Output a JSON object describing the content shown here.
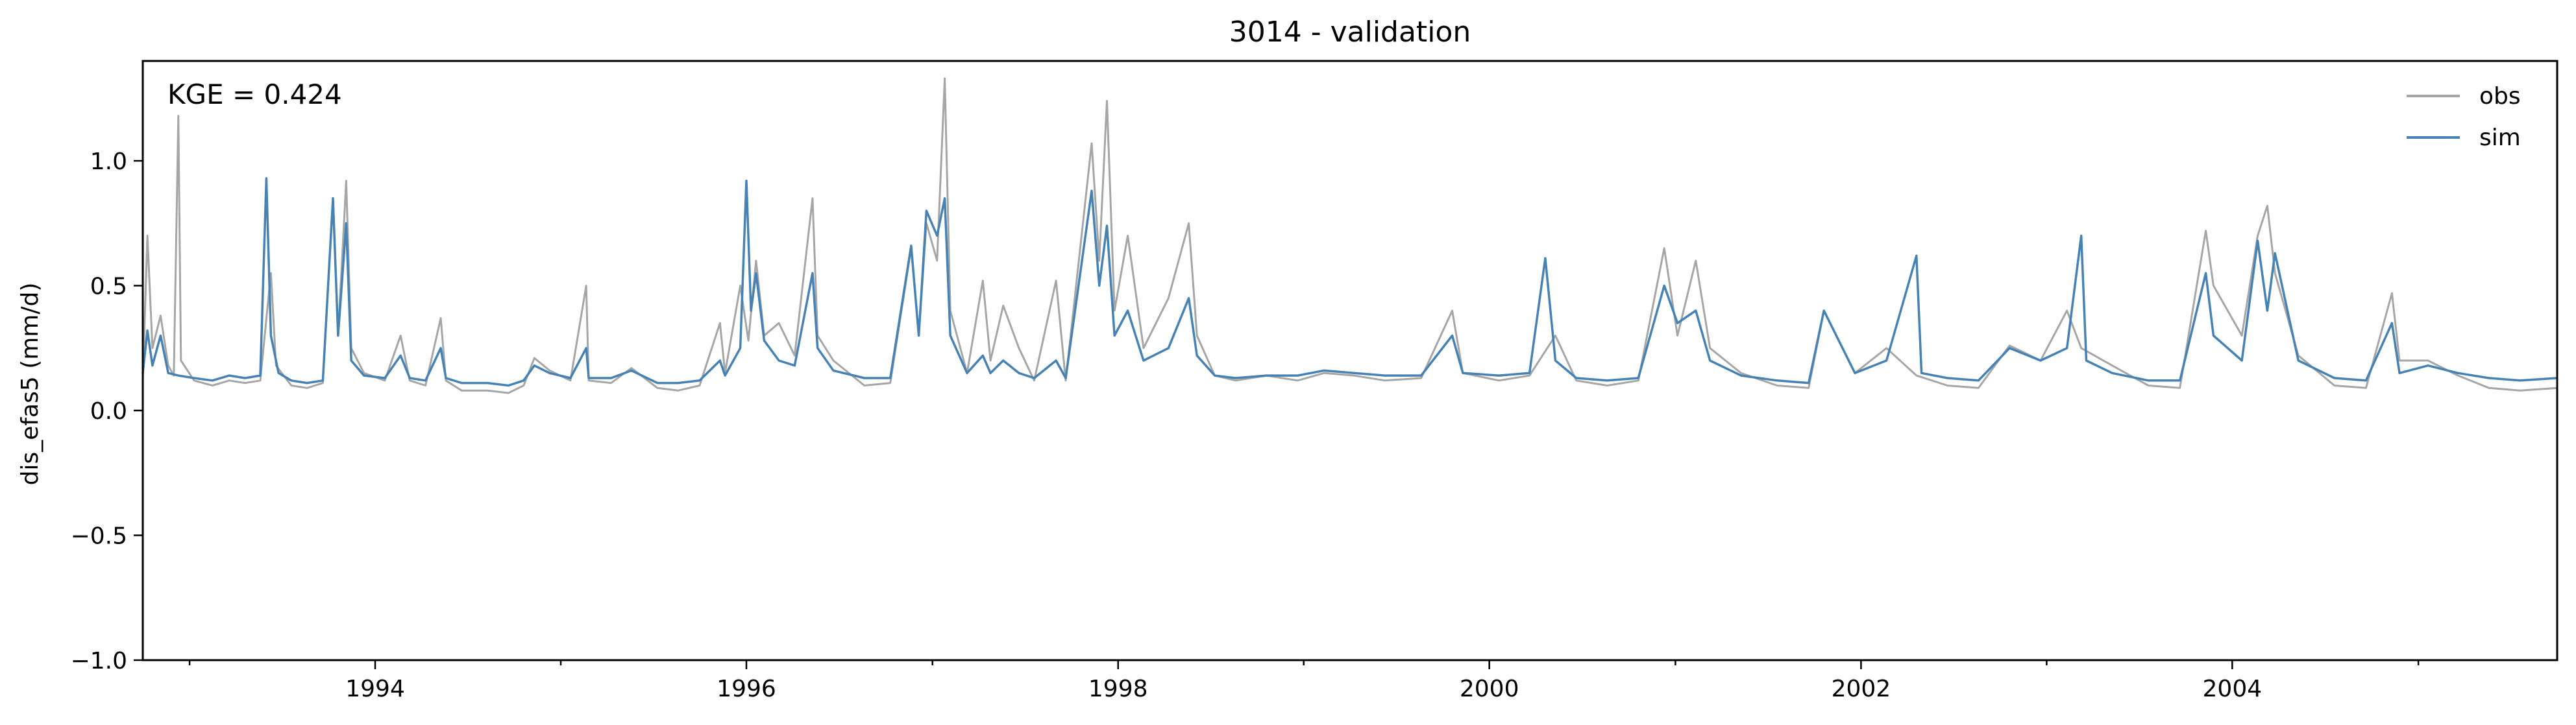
{
  "chart_data": {
    "type": "line",
    "title": "3014 - validation",
    "xlabel": "",
    "ylabel": "dis_efas5 (mm/d)",
    "annotation": "KGE = 0.424",
    "xlim": [
      "1992-10-01",
      "2005-10-01"
    ],
    "ylim": [
      -1.0,
      1.4
    ],
    "x_ticks": [
      "1994",
      "1996",
      "1998",
      "2000",
      "2002",
      "2004"
    ],
    "y_ticks": [
      "−1.0",
      "−0.5",
      "0.0",
      "0.5",
      "1.0"
    ],
    "y_tick_values": [
      -1.0,
      -0.5,
      0.0,
      0.5,
      1.0
    ],
    "legend": {
      "position": "top-right",
      "entries": [
        "obs",
        "sim"
      ]
    },
    "grid": false,
    "series": [
      {
        "name": "obs",
        "color": "#a6a6a6",
        "points": [
          [
            "1992-10-01",
            0.12
          ],
          [
            "1992-10-10",
            0.7
          ],
          [
            "1992-10-20",
            0.25
          ],
          [
            "1992-11-05",
            0.38
          ],
          [
            "1992-11-20",
            0.18
          ],
          [
            "1992-12-01",
            0.14
          ],
          [
            "1992-12-10",
            1.18
          ],
          [
            "1992-12-15",
            0.2
          ],
          [
            "1993-01-10",
            0.12
          ],
          [
            "1993-02-15",
            0.1
          ],
          [
            "1993-03-20",
            0.12
          ],
          [
            "1993-04-20",
            0.11
          ],
          [
            "1993-05-20",
            0.12
          ],
          [
            "1993-06-10",
            0.55
          ],
          [
            "1993-06-20",
            0.18
          ],
          [
            "1993-07-20",
            0.1
          ],
          [
            "1993-08-20",
            0.09
          ],
          [
            "1993-09-20",
            0.11
          ],
          [
            "1993-10-10",
            0.85
          ],
          [
            "1993-10-20",
            0.3
          ],
          [
            "1993-11-05",
            0.92
          ],
          [
            "1993-11-15",
            0.25
          ],
          [
            "1993-12-10",
            0.15
          ],
          [
            "1994-01-20",
            0.12
          ],
          [
            "1994-02-20",
            0.3
          ],
          [
            "1994-03-10",
            0.12
          ],
          [
            "1994-04-10",
            0.1
          ],
          [
            "1994-05-10",
            0.37
          ],
          [
            "1994-05-20",
            0.12
          ],
          [
            "1994-06-20",
            0.08
          ],
          [
            "1994-08-10",
            0.08
          ],
          [
            "1994-09-20",
            0.07
          ],
          [
            "1994-10-20",
            0.1
          ],
          [
            "1994-11-10",
            0.21
          ],
          [
            "1994-12-10",
            0.16
          ],
          [
            "1995-01-20",
            0.12
          ],
          [
            "1995-02-20",
            0.5
          ],
          [
            "1995-02-25",
            0.12
          ],
          [
            "1995-04-10",
            0.11
          ],
          [
            "1995-05-20",
            0.17
          ],
          [
            "1995-07-10",
            0.09
          ],
          [
            "1995-08-20",
            0.08
          ],
          [
            "1995-10-01",
            0.1
          ],
          [
            "1995-11-10",
            0.35
          ],
          [
            "1995-11-20",
            0.15
          ],
          [
            "1995-12-20",
            0.5
          ],
          [
            "1996-01-05",
            0.28
          ],
          [
            "1996-01-20",
            0.6
          ],
          [
            "1996-02-05",
            0.3
          ],
          [
            "1996-03-05",
            0.35
          ],
          [
            "1996-04-05",
            0.22
          ],
          [
            "1996-05-10",
            0.85
          ],
          [
            "1996-05-20",
            0.3
          ],
          [
            "1996-06-20",
            0.2
          ],
          [
            "1996-08-20",
            0.1
          ],
          [
            "1996-10-10",
            0.11
          ],
          [
            "1996-11-20",
            0.65
          ],
          [
            "1996-12-05",
            0.3
          ],
          [
            "1996-12-20",
            0.75
          ],
          [
            "1997-01-10",
            0.6
          ],
          [
            "1997-01-25",
            1.33
          ],
          [
            "1997-02-05",
            0.4
          ],
          [
            "1997-03-10",
            0.15
          ],
          [
            "1997-04-10",
            0.52
          ],
          [
            "1997-04-25",
            0.2
          ],
          [
            "1997-05-20",
            0.42
          ],
          [
            "1997-06-20",
            0.25
          ],
          [
            "1997-07-20",
            0.12
          ],
          [
            "1997-09-01",
            0.52
          ],
          [
            "1997-09-20",
            0.12
          ],
          [
            "1997-11-10",
            1.07
          ],
          [
            "1997-11-25",
            0.6
          ],
          [
            "1997-12-10",
            1.24
          ],
          [
            "1997-12-25",
            0.4
          ],
          [
            "1998-01-20",
            0.7
          ],
          [
            "1998-02-20",
            0.25
          ],
          [
            "1998-04-10",
            0.45
          ],
          [
            "1998-05-20",
            0.75
          ],
          [
            "1998-06-05",
            0.3
          ],
          [
            "1998-07-10",
            0.14
          ],
          [
            "1998-08-20",
            0.12
          ],
          [
            "1998-10-20",
            0.14
          ],
          [
            "1998-12-20",
            0.12
          ],
          [
            "1999-02-10",
            0.15
          ],
          [
            "1999-04-10",
            0.14
          ],
          [
            "1999-06-10",
            0.12
          ],
          [
            "1999-08-20",
            0.13
          ],
          [
            "1999-10-20",
            0.4
          ],
          [
            "1999-11-10",
            0.15
          ],
          [
            "2000-01-20",
            0.12
          ],
          [
            "2000-03-20",
            0.14
          ],
          [
            "2000-05-10",
            0.3
          ],
          [
            "2000-06-20",
            0.12
          ],
          [
            "2000-08-20",
            0.1
          ],
          [
            "2000-10-20",
            0.12
          ],
          [
            "2000-12-10",
            0.65
          ],
          [
            "2001-01-05",
            0.3
          ],
          [
            "2001-02-10",
            0.6
          ],
          [
            "2001-03-10",
            0.25
          ],
          [
            "2001-05-10",
            0.15
          ],
          [
            "2001-07-20",
            0.1
          ],
          [
            "2001-09-20",
            0.09
          ],
          [
            "2001-10-20",
            0.4
          ],
          [
            "2001-12-20",
            0.15
          ],
          [
            "2002-02-20",
            0.25
          ],
          [
            "2002-04-20",
            0.14
          ],
          [
            "2002-06-20",
            0.1
          ],
          [
            "2002-08-20",
            0.09
          ],
          [
            "2002-10-20",
            0.26
          ],
          [
            "2002-12-20",
            0.2
          ],
          [
            "2003-02-10",
            0.4
          ],
          [
            "2003-03-10",
            0.25
          ],
          [
            "2003-05-10",
            0.18
          ],
          [
            "2003-07-20",
            0.1
          ],
          [
            "2003-09-20",
            0.09
          ],
          [
            "2003-11-10",
            0.72
          ],
          [
            "2003-11-25",
            0.5
          ],
          [
            "2004-01-20",
            0.3
          ],
          [
            "2004-02-20",
            0.7
          ],
          [
            "2004-03-10",
            0.82
          ],
          [
            "2004-03-25",
            0.55
          ],
          [
            "2004-05-10",
            0.22
          ],
          [
            "2004-07-20",
            0.1
          ],
          [
            "2004-09-20",
            0.09
          ],
          [
            "2004-11-10",
            0.47
          ],
          [
            "2004-11-25",
            0.2
          ],
          [
            "2005-01-20",
            0.2
          ],
          [
            "2005-03-20",
            0.14
          ],
          [
            "2005-05-20",
            0.09
          ],
          [
            "2005-07-20",
            0.08
          ],
          [
            "2005-10-01",
            0.09
          ]
        ]
      },
      {
        "name": "sim",
        "color": "#4682b4",
        "points": [
          [
            "1992-10-01",
            0.15
          ],
          [
            "1992-10-10",
            0.32
          ],
          [
            "1992-10-20",
            0.18
          ],
          [
            "1992-11-05",
            0.3
          ],
          [
            "1992-11-20",
            0.15
          ],
          [
            "1992-12-10",
            0.14
          ],
          [
            "1993-01-10",
            0.13
          ],
          [
            "1993-02-15",
            0.12
          ],
          [
            "1993-03-20",
            0.14
          ],
          [
            "1993-04-20",
            0.13
          ],
          [
            "1993-05-20",
            0.14
          ],
          [
            "1993-06-01",
            0.93
          ],
          [
            "1993-06-10",
            0.3
          ],
          [
            "1993-06-25",
            0.15
          ],
          [
            "1993-07-20",
            0.12
          ],
          [
            "1993-08-20",
            0.11
          ],
          [
            "1993-09-20",
            0.12
          ],
          [
            "1993-10-10",
            0.85
          ],
          [
            "1993-10-20",
            0.3
          ],
          [
            "1993-11-05",
            0.75
          ],
          [
            "1993-11-15",
            0.2
          ],
          [
            "1993-12-10",
            0.14
          ],
          [
            "1994-01-20",
            0.13
          ],
          [
            "1994-02-20",
            0.22
          ],
          [
            "1994-03-10",
            0.13
          ],
          [
            "1994-04-10",
            0.12
          ],
          [
            "1994-05-10",
            0.25
          ],
          [
            "1994-05-20",
            0.13
          ],
          [
            "1994-06-20",
            0.11
          ],
          [
            "1994-08-10",
            0.11
          ],
          [
            "1994-09-20",
            0.1
          ],
          [
            "1994-10-20",
            0.12
          ],
          [
            "1994-11-10",
            0.18
          ],
          [
            "1994-12-10",
            0.15
          ],
          [
            "1995-01-20",
            0.13
          ],
          [
            "1995-02-20",
            0.25
          ],
          [
            "1995-02-25",
            0.13
          ],
          [
            "1995-04-10",
            0.13
          ],
          [
            "1995-05-20",
            0.16
          ],
          [
            "1995-07-10",
            0.11
          ],
          [
            "1995-08-20",
            0.11
          ],
          [
            "1995-10-01",
            0.12
          ],
          [
            "1995-11-10",
            0.2
          ],
          [
            "1995-11-20",
            0.14
          ],
          [
            "1995-12-20",
            0.25
          ],
          [
            "1996-01-01",
            0.92
          ],
          [
            "1996-01-10",
            0.4
          ],
          [
            "1996-01-20",
            0.55
          ],
          [
            "1996-02-05",
            0.28
          ],
          [
            "1996-03-05",
            0.2
          ],
          [
            "1996-04-05",
            0.18
          ],
          [
            "1996-05-10",
            0.55
          ],
          [
            "1996-05-20",
            0.25
          ],
          [
            "1996-06-20",
            0.16
          ],
          [
            "1996-08-20",
            0.13
          ],
          [
            "1996-10-10",
            0.13
          ],
          [
            "1996-11-20",
            0.66
          ],
          [
            "1996-12-05",
            0.3
          ],
          [
            "1996-12-20",
            0.8
          ],
          [
            "1997-01-10",
            0.7
          ],
          [
            "1997-01-25",
            0.85
          ],
          [
            "1997-02-05",
            0.3
          ],
          [
            "1997-03-10",
            0.15
          ],
          [
            "1997-04-10",
            0.22
          ],
          [
            "1997-04-25",
            0.15
          ],
          [
            "1997-05-20",
            0.2
          ],
          [
            "1997-06-20",
            0.15
          ],
          [
            "1997-07-20",
            0.13
          ],
          [
            "1997-09-01",
            0.2
          ],
          [
            "1997-09-20",
            0.13
          ],
          [
            "1997-11-10",
            0.88
          ],
          [
            "1997-11-25",
            0.5
          ],
          [
            "1997-12-10",
            0.74
          ],
          [
            "1997-12-25",
            0.3
          ],
          [
            "1998-01-20",
            0.4
          ],
          [
            "1998-02-20",
            0.2
          ],
          [
            "1998-04-10",
            0.25
          ],
          [
            "1998-05-20",
            0.45
          ],
          [
            "1998-06-05",
            0.22
          ],
          [
            "1998-07-10",
            0.14
          ],
          [
            "1998-08-20",
            0.13
          ],
          [
            "1998-10-20",
            0.14
          ],
          [
            "1998-12-20",
            0.14
          ],
          [
            "1999-02-10",
            0.16
          ],
          [
            "1999-04-10",
            0.15
          ],
          [
            "1999-06-10",
            0.14
          ],
          [
            "1999-08-20",
            0.14
          ],
          [
            "1999-10-20",
            0.3
          ],
          [
            "1999-11-10",
            0.15
          ],
          [
            "2000-01-20",
            0.14
          ],
          [
            "2000-03-20",
            0.15
          ],
          [
            "2000-04-20",
            0.61
          ],
          [
            "2000-05-10",
            0.2
          ],
          [
            "2000-06-20",
            0.13
          ],
          [
            "2000-08-20",
            0.12
          ],
          [
            "2000-10-20",
            0.13
          ],
          [
            "2000-12-10",
            0.5
          ],
          [
            "2001-01-05",
            0.35
          ],
          [
            "2001-02-10",
            0.4
          ],
          [
            "2001-03-10",
            0.2
          ],
          [
            "2001-05-10",
            0.14
          ],
          [
            "2001-07-20",
            0.12
          ],
          [
            "2001-09-20",
            0.11
          ],
          [
            "2001-10-20",
            0.4
          ],
          [
            "2001-12-20",
            0.15
          ],
          [
            "2002-02-20",
            0.2
          ],
          [
            "2002-04-20",
            0.62
          ],
          [
            "2002-04-30",
            0.15
          ],
          [
            "2002-06-20",
            0.13
          ],
          [
            "2002-08-20",
            0.12
          ],
          [
            "2002-10-20",
            0.25
          ],
          [
            "2002-12-20",
            0.2
          ],
          [
            "2003-02-10",
            0.25
          ],
          [
            "2003-03-10",
            0.7
          ],
          [
            "2003-03-20",
            0.2
          ],
          [
            "2003-05-10",
            0.15
          ],
          [
            "2003-07-20",
            0.12
          ],
          [
            "2003-09-20",
            0.12
          ],
          [
            "2003-11-10",
            0.55
          ],
          [
            "2003-11-25",
            0.3
          ],
          [
            "2004-01-20",
            0.2
          ],
          [
            "2004-02-20",
            0.68
          ],
          [
            "2004-03-10",
            0.4
          ],
          [
            "2004-03-25",
            0.63
          ],
          [
            "2004-05-10",
            0.2
          ],
          [
            "2004-07-20",
            0.13
          ],
          [
            "2004-09-20",
            0.12
          ],
          [
            "2004-11-10",
            0.35
          ],
          [
            "2004-11-25",
            0.15
          ],
          [
            "2005-01-20",
            0.18
          ],
          [
            "2005-03-20",
            0.15
          ],
          [
            "2005-05-20",
            0.13
          ],
          [
            "2005-07-20",
            0.12
          ],
          [
            "2005-10-01",
            0.13
          ]
        ]
      }
    ]
  }
}
